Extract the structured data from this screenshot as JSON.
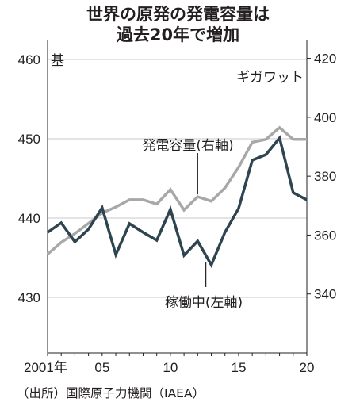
{
  "title": [
    "世界の原発の発電容量は",
    "過去20年で増加"
  ],
  "source": "（出所）国際原子力機関（IAEA）",
  "chart_data": {
    "type": "line",
    "x": [
      2001,
      2002,
      2003,
      2004,
      2005,
      2006,
      2007,
      2008,
      2009,
      2010,
      2011,
      2012,
      2013,
      2014,
      2015,
      2016,
      2017,
      2018,
      2019,
      2020
    ],
    "x_tick_labels": [
      {
        "x": 2001,
        "label": "2001年"
      },
      {
        "x": 2005,
        "label": "05"
      },
      {
        "x": 2010,
        "label": "10"
      },
      {
        "x": 2015,
        "label": "15"
      },
      {
        "x": 2020,
        "label": "20"
      }
    ],
    "xlim": [
      2001,
      2020
    ],
    "left_axis": {
      "unit_label": "基",
      "ylim": [
        423,
        462
      ],
      "ticks": [
        430,
        440,
        450,
        460
      ]
    },
    "right_axis": {
      "unit_label": "ギガワット",
      "ylim": [
        320,
        425
      ],
      "ticks": [
        340,
        360,
        380,
        400,
        420
      ]
    },
    "series": [
      {
        "name": "稼働中(左軸)",
        "axis": "left",
        "color": "#2e4550",
        "values": [
          438.2,
          439.4,
          437.0,
          438.6,
          441.3,
          435.4,
          439.3,
          438.2,
          437.2,
          441.1,
          435.3,
          437.1,
          434.1,
          438.2,
          441.2,
          447.3,
          448.0,
          450.1,
          443.2,
          442.3
        ]
      },
      {
        "name": "発電容量(右軸)",
        "axis": "right",
        "color": "#a8a8a8",
        "values": [
          353.5,
          357.5,
          360.5,
          364.0,
          367.5,
          369.5,
          372.0,
          372.0,
          370.5,
          375.5,
          368.5,
          373.0,
          371.5,
          376.0,
          383.0,
          391.5,
          392.5,
          396.5,
          392.5,
          392.5
        ]
      }
    ],
    "grid": "horizontal, left axis",
    "legend": "inline callout labels"
  },
  "colors": {
    "grid": "#c9c9c9",
    "axis": "#231f20"
  }
}
